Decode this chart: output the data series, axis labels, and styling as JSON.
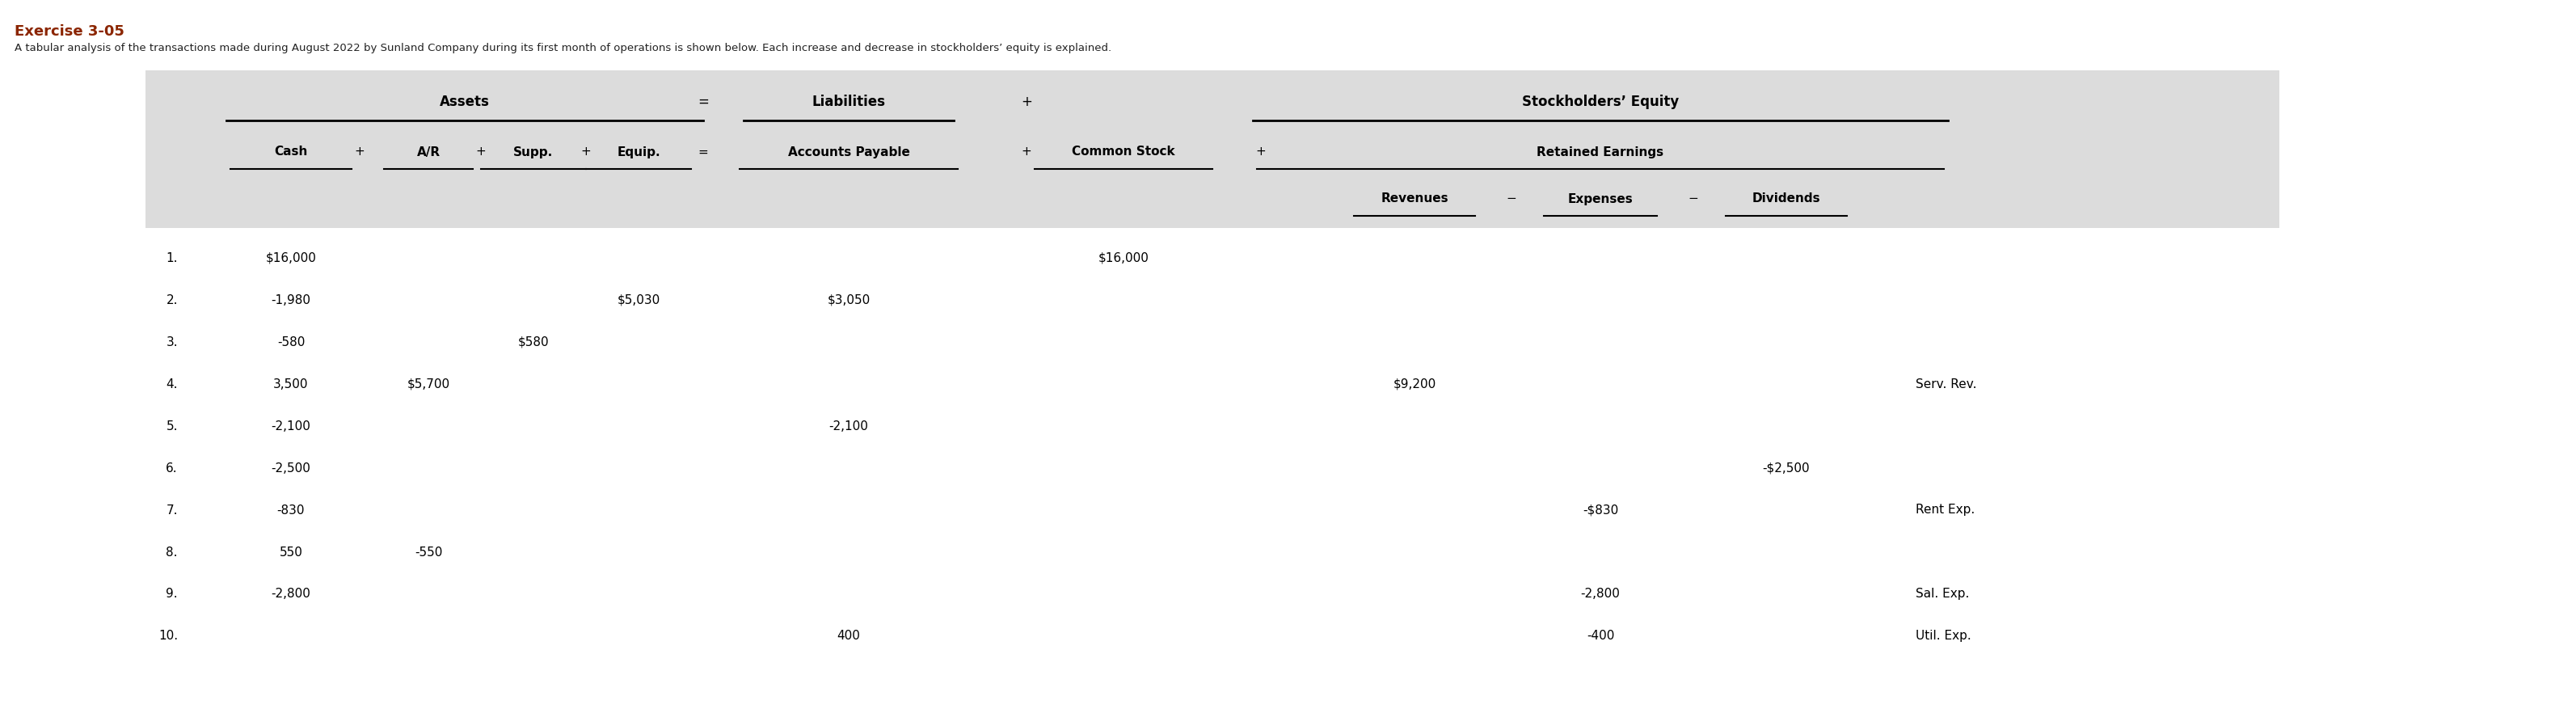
{
  "title": "Exercise 3-05",
  "subtitle": "A tabular analysis of the transactions made during August 2022 by Sunland Company during its first month of operations is shown below. Each increase and decrease in stockholders’ equity is explained.",
  "title_color": "#8B2500",
  "bg_color": "#ffffff",
  "header_bg": "#dcdcdc",
  "rows": [
    {
      "num": "1.",
      "cash": "$16,000",
      "ar": "",
      "supp": "",
      "equip": "",
      "ap": "",
      "cs": "$16,000",
      "rev": "",
      "exp": "",
      "div": "",
      "note": ""
    },
    {
      "num": "2.",
      "cash": "-1,980",
      "ar": "",
      "supp": "",
      "equip": "$5,030",
      "ap": "$3,050",
      "cs": "",
      "rev": "",
      "exp": "",
      "div": "",
      "note": ""
    },
    {
      "num": "3.",
      "cash": "-580",
      "ar": "",
      "supp": "$580",
      "equip": "",
      "ap": "",
      "cs": "",
      "rev": "",
      "exp": "",
      "div": "",
      "note": ""
    },
    {
      "num": "4.",
      "cash": "3,500",
      "ar": "$5,700",
      "supp": "",
      "equip": "",
      "ap": "",
      "cs": "",
      "rev": "$9,200",
      "exp": "",
      "div": "",
      "note": "Serv. Rev."
    },
    {
      "num": "5.",
      "cash": "-2,100",
      "ar": "",
      "supp": "",
      "equip": "",
      "ap": "-2,100",
      "cs": "",
      "rev": "",
      "exp": "",
      "div": "",
      "note": ""
    },
    {
      "num": "6.",
      "cash": "-2,500",
      "ar": "",
      "supp": "",
      "equip": "",
      "ap": "",
      "cs": "",
      "rev": "",
      "exp": "",
      "div": "-$2,500",
      "note": ""
    },
    {
      "num": "7.",
      "cash": "-830",
      "ar": "",
      "supp": "",
      "equip": "",
      "ap": "",
      "cs": "",
      "rev": "",
      "exp": "-$830",
      "div": "",
      "note": "Rent Exp."
    },
    {
      "num": "8.",
      "cash": "550",
      "ar": "-550",
      "supp": "",
      "equip": "",
      "ap": "",
      "cs": "",
      "rev": "",
      "exp": "",
      "div": "",
      "note": ""
    },
    {
      "num": "9.",
      "cash": "-2,800",
      "ar": "",
      "supp": "",
      "equip": "",
      "ap": "",
      "cs": "",
      "rev": "",
      "exp": "-2,800",
      "div": "",
      "note": "Sal. Exp."
    },
    {
      "num": "10.",
      "cash": "",
      "ar": "",
      "supp": "",
      "equip": "",
      "ap": "400",
      "cs": "",
      "rev": "",
      "exp": "-400",
      "div": "",
      "note": "Util. Exp."
    }
  ]
}
